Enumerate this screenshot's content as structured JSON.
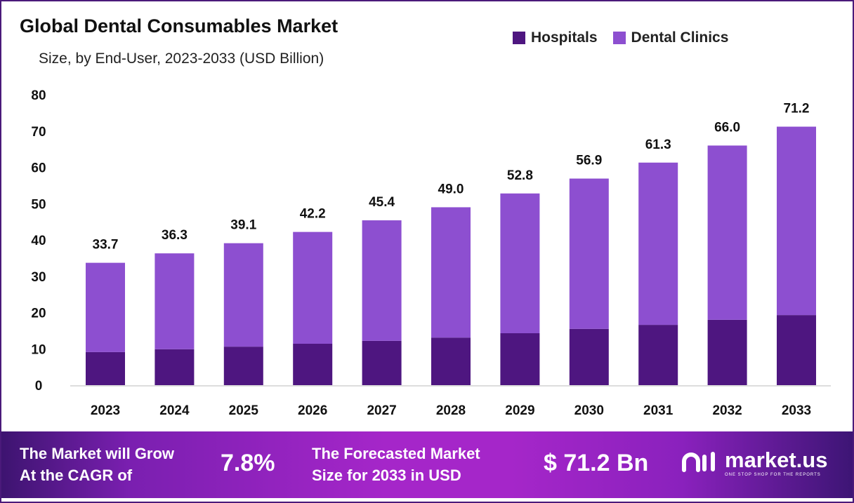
{
  "chart_data": {
    "type": "bar",
    "stacked": true,
    "title": "Global Dental Consumables Market",
    "subtitle": "Size, by End-User, 2023-2033 (USD Billion)",
    "categories": [
      "2023",
      "2024",
      "2025",
      "2026",
      "2027",
      "2028",
      "2029",
      "2030",
      "2031",
      "2032",
      "2033"
    ],
    "series": [
      {
        "name": "Hospitals",
        "color": "#4e1680",
        "values": [
          9.1,
          9.9,
          10.6,
          11.4,
          12.2,
          13.1,
          14.3,
          15.5,
          16.6,
          18.0,
          19.3
        ]
      },
      {
        "name": "Dental Clinics",
        "color": "#8d4fd0",
        "values": [
          24.6,
          26.4,
          28.5,
          30.8,
          33.2,
          35.9,
          38.5,
          41.4,
          44.7,
          48.0,
          51.9
        ]
      }
    ],
    "totals": [
      "33.7",
      "36.3",
      "39.1",
      "42.2",
      "45.4",
      "49.0",
      "52.8",
      "56.9",
      "61.3",
      "66.0",
      "71.2"
    ],
    "totals_values": [
      33.7,
      36.3,
      39.1,
      42.2,
      45.4,
      49.0,
      52.8,
      56.9,
      61.3,
      66.0,
      71.2
    ],
    "ylim": [
      0,
      80
    ],
    "yticks": [
      "0",
      "10",
      "20",
      "30",
      "40",
      "50",
      "60",
      "70",
      "80"
    ],
    "legend_position": "top-right",
    "grid": false
  },
  "banner": {
    "cagr_label_1": "The Market will Grow",
    "cagr_label_2": "At the CAGR of",
    "cagr_value": "7.8%",
    "forecast_label_1": "The Forecasted Market",
    "forecast_label_2": "Size for 2033 in USD",
    "forecast_value": "$ 71.2 Bn",
    "logo_name": "market.us",
    "logo_tagline": "ONE STOP SHOP FOR THE REPORTS"
  }
}
